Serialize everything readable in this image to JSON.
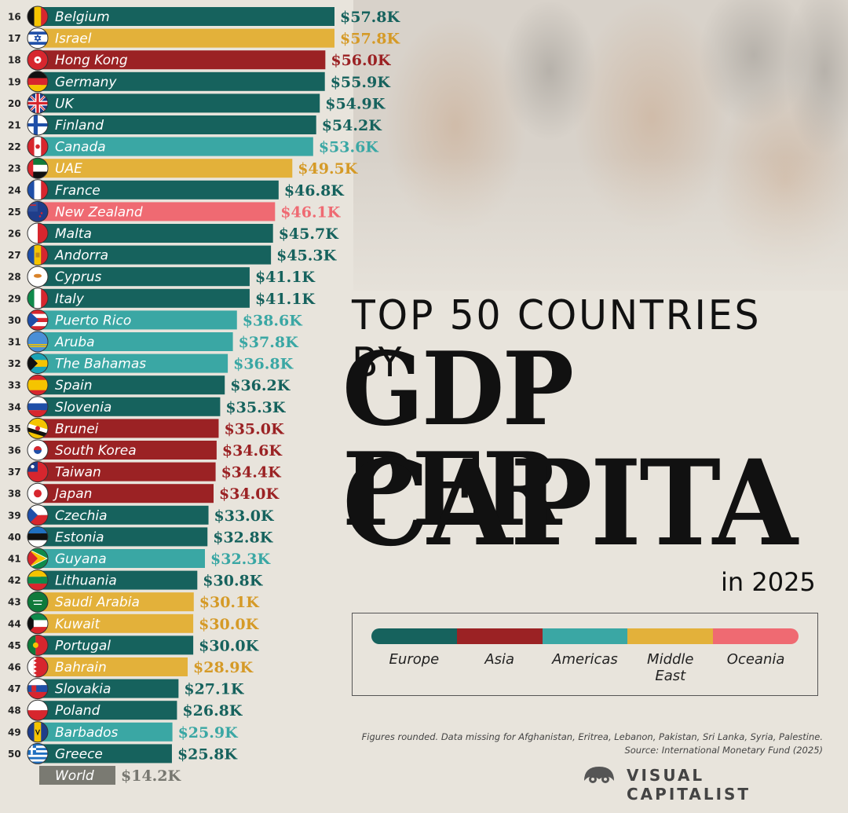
{
  "title": {
    "line1": "TOP 50 COUNTRIES BY",
    "line2": "GDP PER",
    "line3": "CAPITA",
    "subtitle": "in 2025"
  },
  "colors": {
    "Europe": "#16625d",
    "Asia": "#9b2224",
    "Americas": "#3aa7a4",
    "Middle East": "#e3b13a",
    "Oceania": "#ef6a72",
    "World": "#7a7a72"
  },
  "value_colors": {
    "Europe": "#16625d",
    "Asia": "#9b2224",
    "Americas": "#3aa7a4",
    "Middle East": "#d59a27",
    "Oceania": "#ef6a72",
    "World": "#777770"
  },
  "legend": {
    "items": [
      {
        "key": "Europe",
        "label": "Europe"
      },
      {
        "key": "Asia",
        "label": "Asia"
      },
      {
        "key": "Americas",
        "label": "Americas"
      },
      {
        "key": "Middle East",
        "label": "Middle\nEast"
      },
      {
        "key": "Oceania",
        "label": "Oceania"
      }
    ]
  },
  "note": {
    "line1": "Figures rounded. Data missing for Afghanistan, Eritrea, Lebanon, Pakistan, Sri Lanka, Syria, Palestine.",
    "line2": "Source: International Monetary Fund (2025)"
  },
  "brand": {
    "name": "VISUAL CAPITALIST",
    "icon": "visual-capitalist-logo-icon"
  },
  "chart_data": {
    "type": "bar",
    "orientation": "horizontal",
    "title": "TOP 50 COUNTRIES BY GDP PER CAPITA",
    "subtitle": "in 2025",
    "unit": "thousand US dollars",
    "xlim": [
      0,
      57.8
    ],
    "rows": [
      {
        "rank": "16",
        "country": "Belgium",
        "value": 57.8,
        "label": "$57.8K",
        "region": "Europe",
        "flag": "belgium-flag-icon"
      },
      {
        "rank": "17",
        "country": "Israel",
        "value": 57.8,
        "label": "$57.8K",
        "region": "Middle East",
        "flag": "israel-flag-icon"
      },
      {
        "rank": "18",
        "country": "Hong Kong",
        "value": 56.0,
        "label": "$56.0K",
        "region": "Asia",
        "flag": "hong-kong-flag-icon"
      },
      {
        "rank": "19",
        "country": "Germany",
        "value": 55.9,
        "label": "$55.9K",
        "region": "Europe",
        "flag": "germany-flag-icon"
      },
      {
        "rank": "20",
        "country": "UK",
        "value": 54.9,
        "label": "$54.9K",
        "region": "Europe",
        "flag": "uk-flag-icon"
      },
      {
        "rank": "21",
        "country": "Finland",
        "value": 54.2,
        "label": "$54.2K",
        "region": "Europe",
        "flag": "finland-flag-icon"
      },
      {
        "rank": "22",
        "country": "Canada",
        "value": 53.6,
        "label": "$53.6K",
        "region": "Americas",
        "flag": "canada-flag-icon"
      },
      {
        "rank": "23",
        "country": "UAE",
        "value": 49.5,
        "label": "$49.5K",
        "region": "Middle East",
        "flag": "uae-flag-icon"
      },
      {
        "rank": "24",
        "country": "France",
        "value": 46.8,
        "label": "$46.8K",
        "region": "Europe",
        "flag": "france-flag-icon"
      },
      {
        "rank": "25",
        "country": "New Zealand",
        "value": 46.1,
        "label": "$46.1K",
        "region": "Oceania",
        "flag": "new-zealand-flag-icon"
      },
      {
        "rank": "26",
        "country": "Malta",
        "value": 45.7,
        "label": "$45.7K",
        "region": "Europe",
        "flag": "malta-flag-icon"
      },
      {
        "rank": "27",
        "country": "Andorra",
        "value": 45.3,
        "label": "$45.3K",
        "region": "Europe",
        "flag": "andorra-flag-icon"
      },
      {
        "rank": "28",
        "country": "Cyprus",
        "value": 41.1,
        "label": "$41.1K",
        "region": "Europe",
        "flag": "cyprus-flag-icon"
      },
      {
        "rank": "29",
        "country": "Italy",
        "value": 41.1,
        "label": "$41.1K",
        "region": "Europe",
        "flag": "italy-flag-icon"
      },
      {
        "rank": "30",
        "country": "Puerto Rico",
        "value": 38.6,
        "label": "$38.6K",
        "region": "Americas",
        "flag": "puerto-rico-flag-icon"
      },
      {
        "rank": "31",
        "country": "Aruba",
        "value": 37.8,
        "label": "$37.8K",
        "region": "Americas",
        "flag": "aruba-flag-icon"
      },
      {
        "rank": "32",
        "country": "The Bahamas",
        "value": 36.8,
        "label": "$36.8K",
        "region": "Americas",
        "flag": "bahamas-flag-icon"
      },
      {
        "rank": "33",
        "country": "Spain",
        "value": 36.2,
        "label": "$36.2K",
        "region": "Europe",
        "flag": "spain-flag-icon"
      },
      {
        "rank": "34",
        "country": "Slovenia",
        "value": 35.3,
        "label": "$35.3K",
        "region": "Europe",
        "flag": "slovenia-flag-icon"
      },
      {
        "rank": "35",
        "country": "Brunei",
        "value": 35.0,
        "label": "$35.0K",
        "region": "Asia",
        "flag": "brunei-flag-icon"
      },
      {
        "rank": "36",
        "country": "South Korea",
        "value": 34.6,
        "label": "$34.6K",
        "region": "Asia",
        "flag": "south-korea-flag-icon"
      },
      {
        "rank": "37",
        "country": "Taiwan",
        "value": 34.4,
        "label": "$34.4K",
        "region": "Asia",
        "flag": "taiwan-flag-icon"
      },
      {
        "rank": "38",
        "country": "Japan",
        "value": 34.0,
        "label": "$34.0K",
        "region": "Asia",
        "flag": "japan-flag-icon"
      },
      {
        "rank": "39",
        "country": "Czechia",
        "value": 33.0,
        "label": "$33.0K",
        "region": "Europe",
        "flag": "czechia-flag-icon"
      },
      {
        "rank": "40",
        "country": "Estonia",
        "value": 32.8,
        "label": "$32.8K",
        "region": "Europe",
        "flag": "estonia-flag-icon"
      },
      {
        "rank": "41",
        "country": "Guyana",
        "value": 32.3,
        "label": "$32.3K",
        "region": "Americas",
        "flag": "guyana-flag-icon"
      },
      {
        "rank": "42",
        "country": "Lithuania",
        "value": 30.8,
        "label": "$30.8K",
        "region": "Europe",
        "flag": "lithuania-flag-icon"
      },
      {
        "rank": "43",
        "country": "Saudi Arabia",
        "value": 30.1,
        "label": "$30.1K",
        "region": "Middle East",
        "flag": "saudi-arabia-flag-icon"
      },
      {
        "rank": "44",
        "country": "Kuwait",
        "value": 30.0,
        "label": "$30.0K",
        "region": "Middle East",
        "flag": "kuwait-flag-icon"
      },
      {
        "rank": "45",
        "country": "Portugal",
        "value": 30.0,
        "label": "$30.0K",
        "region": "Europe",
        "flag": "portugal-flag-icon"
      },
      {
        "rank": "46",
        "country": "Bahrain",
        "value": 28.9,
        "label": "$28.9K",
        "region": "Middle East",
        "flag": "bahrain-flag-icon"
      },
      {
        "rank": "47",
        "country": "Slovakia",
        "value": 27.1,
        "label": "$27.1K",
        "region": "Europe",
        "flag": "slovakia-flag-icon"
      },
      {
        "rank": "48",
        "country": "Poland",
        "value": 26.8,
        "label": "$26.8K",
        "region": "Europe",
        "flag": "poland-flag-icon"
      },
      {
        "rank": "49",
        "country": "Barbados",
        "value": 25.9,
        "label": "$25.9K",
        "region": "Americas",
        "flag": "barbados-flag-icon"
      },
      {
        "rank": "50",
        "country": "Greece",
        "value": 25.8,
        "label": "$25.8K",
        "region": "Europe",
        "flag": "greece-flag-icon"
      },
      {
        "rank": "",
        "country": "World",
        "value": 14.2,
        "label": "$14.2K",
        "region": "World",
        "flag": ""
      }
    ]
  }
}
